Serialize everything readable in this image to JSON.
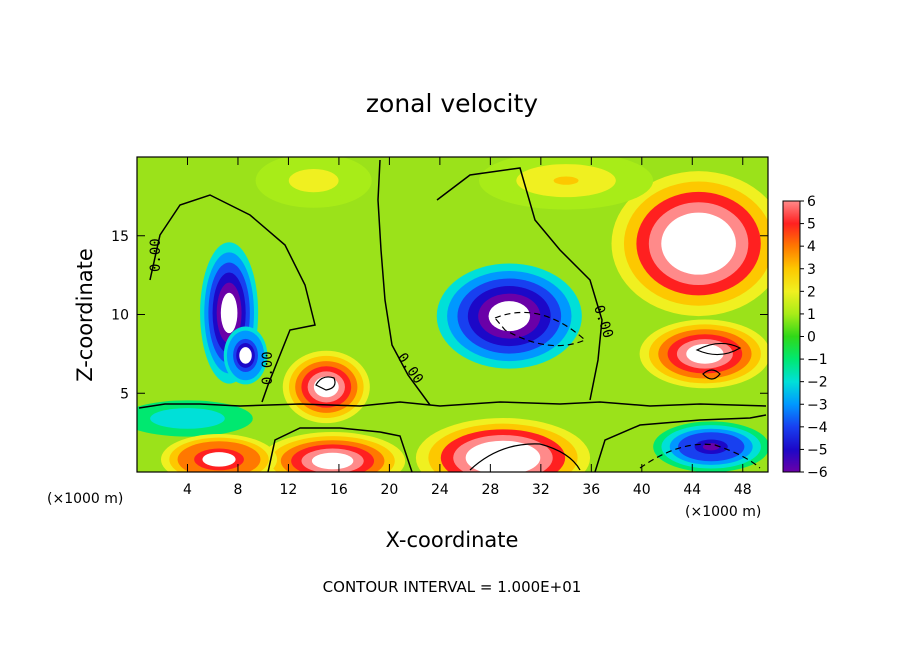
{
  "chart_data": {
    "type": "heatmap",
    "title": "zonal velocity",
    "xlabel": "X-coordinate",
    "ylabel": "Z-coordinate",
    "x_unit_label": "(×1000 m)",
    "x_unit_label_right": "(×1000 m)",
    "xlim": [
      0,
      50
    ],
    "ylim": [
      0,
      20
    ],
    "x_ticks": [
      "4",
      "8",
      "12",
      "16",
      "20",
      "24",
      "28",
      "32",
      "36",
      "40",
      "44",
      "48"
    ],
    "y_ticks": [
      "5",
      "10",
      "15"
    ],
    "contour_interval_text": "CONTOUR INTERVAL = 1.000E+01",
    "contour_labels": [
      "0.00",
      "0.00",
      "0.00",
      "0.00"
    ],
    "colorbar": {
      "min": -6,
      "max": 6,
      "labels": [
        "6",
        "5",
        "4",
        "3",
        "2",
        "1",
        "0",
        "−1",
        "−2",
        "−3",
        "−4",
        "−5",
        "−6"
      ],
      "colors": [
        "#6a00a8",
        "#1c08c8",
        "#1840f0",
        "#0098ff",
        "#00e0d8",
        "#00e870",
        "#30d818",
        "#a8ec18",
        "#f0f020",
        "#fdc800",
        "#ff7800",
        "#ff2020",
        "#ff8a8a"
      ]
    },
    "features": [
      {
        "kind": "negative",
        "value": -8,
        "x": 7.3,
        "z": 10.1,
        "sx": 2.0,
        "sz": 3.9
      },
      {
        "kind": "negative",
        "value": -7,
        "x": 8.6,
        "z": 7.4,
        "sx": 1.5,
        "sz": 1.6
      },
      {
        "kind": "negative",
        "value": -8,
        "x": 29.5,
        "z": 9.9,
        "sx": 5.0,
        "sz": 2.9
      },
      {
        "kind": "negative",
        "value": -6,
        "x": 45.5,
        "z": 1.6,
        "sx": 4.0,
        "sz": 1.4
      },
      {
        "kind": "negative",
        "value": -2.5,
        "x": 4.0,
        "z": 3.4,
        "sx": 4.5,
        "sz": 1.0
      },
      {
        "kind": "positive",
        "value": 9,
        "x": 44.5,
        "z": 14.5,
        "sx": 6.0,
        "sz": 4.0
      },
      {
        "kind": "positive",
        "value": 8,
        "x": 45.0,
        "z": 7.5,
        "sx": 4.5,
        "sz": 1.9
      },
      {
        "kind": "positive",
        "value": 8,
        "x": 15.0,
        "z": 5.4,
        "sx": 3.0,
        "sz": 2.0
      },
      {
        "kind": "positive",
        "value": 9,
        "x": 29.0,
        "z": 0.9,
        "sx": 6.0,
        "sz": 2.2
      },
      {
        "kind": "positive",
        "value": 8,
        "x": 15.5,
        "z": 0.7,
        "sx": 5.0,
        "sz": 1.6
      },
      {
        "kind": "positive",
        "value": 7,
        "x": 6.5,
        "z": 0.8,
        "sx": 4.0,
        "sz": 1.4
      },
      {
        "kind": "positive",
        "value": 2.5,
        "x": 34.0,
        "z": 18.5,
        "sx": 6.0,
        "sz": 1.6
      },
      {
        "kind": "positive",
        "value": 2,
        "x": 14.0,
        "z": 18.5,
        "sx": 4.0,
        "sz": 1.5
      }
    ]
  }
}
